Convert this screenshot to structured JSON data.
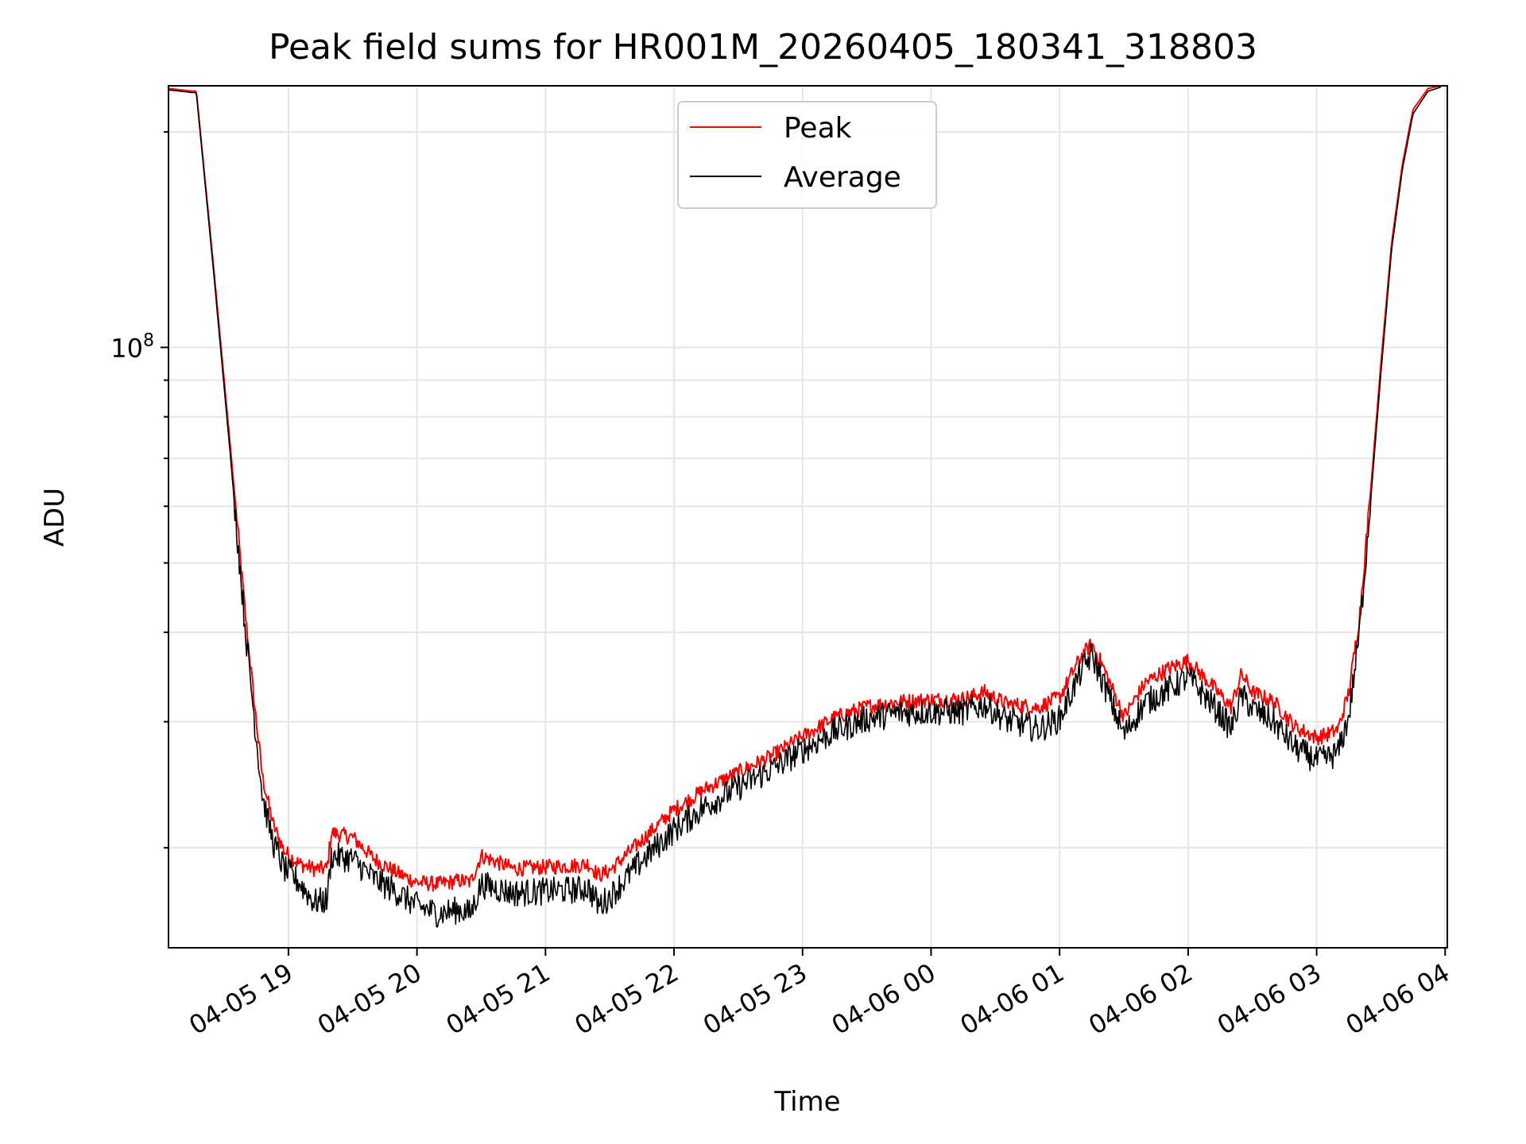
{
  "chart_data": {
    "type": "line",
    "title": "Peak field sums for HR001M_20260405_180341_318803",
    "xlabel": "Time",
    "ylabel": "ADU",
    "yscale": "log",
    "grid": true,
    "legend_position": "upper-center",
    "xlim": [
      "2026-04-05 18:04",
      "2026-04-06 04:01"
    ],
    "ylim": [
      14500000,
      232000000
    ],
    "x_ticks": [
      "04-05 19",
      "04-05 20",
      "04-05 21",
      "04-05 22",
      "04-05 23",
      "04-06 00",
      "04-06 01",
      "04-06 02",
      "04-06 03",
      "04-06 04"
    ],
    "y_tick_labels": [
      {
        "value": 100000000,
        "mantissa": "10",
        "exponent": "8"
      }
    ],
    "colors": {
      "Peak": "#ff0000",
      "Average": "#000000"
    },
    "series": [
      {
        "name": "Peak",
        "x": [
          "2026-04-05 18:04",
          "2026-04-05 18:15",
          "2026-04-05 18:17",
          "2026-04-05 18:25",
          "2026-04-05 18:33",
          "2026-04-05 18:40",
          "2026-04-05 18:45",
          "2026-04-05 18:48",
          "2026-04-05 18:53",
          "2026-04-05 18:58",
          "2026-04-05 19:05",
          "2026-04-05 19:12",
          "2026-04-05 19:18",
          "2026-04-05 19:20",
          "2026-04-05 19:30",
          "2026-04-05 19:40",
          "2026-04-05 19:50",
          "2026-04-05 20:00",
          "2026-04-05 20:10",
          "2026-04-05 20:20",
          "2026-04-05 20:25",
          "2026-04-05 20:30",
          "2026-04-05 20:45",
          "2026-04-05 21:00",
          "2026-04-05 21:15",
          "2026-04-05 21:20",
          "2026-04-05 21:25",
          "2026-04-05 21:30",
          "2026-04-05 21:45",
          "2026-04-05 22:00",
          "2026-04-05 22:15",
          "2026-04-05 22:30",
          "2026-04-05 22:45",
          "2026-04-05 23:00",
          "2026-04-05 23:15",
          "2026-04-05 23:30",
          "2026-04-05 23:45",
          "2026-04-06 00:00",
          "2026-04-06 00:15",
          "2026-04-06 00:25",
          "2026-04-06 00:35",
          "2026-04-06 00:50",
          "2026-04-06 01:00",
          "2026-04-06 01:10",
          "2026-04-06 01:15",
          "2026-04-06 01:20",
          "2026-04-06 01:30",
          "2026-04-06 01:40",
          "2026-04-06 01:50",
          "2026-04-06 02:00",
          "2026-04-06 02:10",
          "2026-04-06 02:20",
          "2026-04-06 02:25",
          "2026-04-06 02:30",
          "2026-04-06 02:40",
          "2026-04-06 02:50",
          "2026-04-06 03:00",
          "2026-04-06 03:05",
          "2026-04-06 03:10",
          "2026-04-06 03:15",
          "2026-04-06 03:20",
          "2026-04-06 03:25",
          "2026-04-06 03:30",
          "2026-04-06 03:35",
          "2026-04-06 03:40",
          "2026-04-06 03:45",
          "2026-04-06 03:52",
          "2026-04-06 03:58"
        ],
        "y": [
          230000000,
          228000000,
          228000000,
          130000000,
          72000000,
          42000000,
          30000000,
          25000000,
          21500000,
          19800000,
          19000000,
          18700000,
          18700000,
          21000000,
          20700000,
          19300000,
          18500000,
          17900000,
          17800000,
          18000000,
          17900000,
          19500000,
          18700000,
          18800000,
          18900000,
          19000000,
          18300000,
          18600000,
          20500000,
          22600000,
          24200000,
          25500000,
          26800000,
          28600000,
          30400000,
          31500000,
          32000000,
          32200000,
          32300000,
          33000000,
          31800000,
          31400000,
          32500000,
          37000000,
          38500000,
          36000000,
          30500000,
          34000000,
          35500000,
          36500000,
          34000000,
          31500000,
          35000000,
          33000000,
          32000000,
          29500000,
          28500000,
          28800000,
          29300000,
          33000000,
          42000000,
          62000000,
          95000000,
          140000000,
          180000000,
          215000000,
          230000000,
          232000000
        ]
      },
      {
        "name": "Average",
        "x": [
          "2026-04-05 18:04",
          "2026-04-05 18:15",
          "2026-04-05 18:17",
          "2026-04-05 18:25",
          "2026-04-05 18:33",
          "2026-04-05 18:40",
          "2026-04-05 18:45",
          "2026-04-05 18:48",
          "2026-04-05 18:53",
          "2026-04-05 18:58",
          "2026-04-05 19:05",
          "2026-04-05 19:12",
          "2026-04-05 19:18",
          "2026-04-05 19:20",
          "2026-04-05 19:30",
          "2026-04-05 19:40",
          "2026-04-05 19:50",
          "2026-04-05 20:00",
          "2026-04-05 20:10",
          "2026-04-05 20:20",
          "2026-04-05 20:25",
          "2026-04-05 20:30",
          "2026-04-05 20:45",
          "2026-04-05 21:00",
          "2026-04-05 21:15",
          "2026-04-05 21:20",
          "2026-04-05 21:25",
          "2026-04-05 21:30",
          "2026-04-05 21:45",
          "2026-04-05 22:00",
          "2026-04-05 22:15",
          "2026-04-05 22:30",
          "2026-04-05 22:45",
          "2026-04-05 23:00",
          "2026-04-05 23:15",
          "2026-04-05 23:30",
          "2026-04-05 23:45",
          "2026-04-06 00:00",
          "2026-04-06 00:15",
          "2026-04-06 00:25",
          "2026-04-06 00:35",
          "2026-04-06 00:50",
          "2026-04-06 01:00",
          "2026-04-06 01:10",
          "2026-04-06 01:15",
          "2026-04-06 01:20",
          "2026-04-06 01:30",
          "2026-04-06 01:40",
          "2026-04-06 01:50",
          "2026-04-06 02:00",
          "2026-04-06 02:10",
          "2026-04-06 02:20",
          "2026-04-06 02:25",
          "2026-04-06 02:30",
          "2026-04-06 02:40",
          "2026-04-06 02:50",
          "2026-04-06 03:00",
          "2026-04-06 03:05",
          "2026-04-06 03:10",
          "2026-04-06 03:15",
          "2026-04-06 03:20",
          "2026-04-06 03:25",
          "2026-04-06 03:30",
          "2026-04-06 03:35",
          "2026-04-06 03:40",
          "2026-04-06 03:45",
          "2026-04-06 03:52",
          "2026-04-06 03:58"
        ],
        "y": [
          229000000,
          227000000,
          227000000,
          128000000,
          70000000,
          40000000,
          28500000,
          23500000,
          20300000,
          18700000,
          17900000,
          16800000,
          16900000,
          19500000,
          19300000,
          18100000,
          17400000,
          16600000,
          16200000,
          16400000,
          16200000,
          17800000,
          17300000,
          17400000,
          17500000,
          17600000,
          16600000,
          17100000,
          19200000,
          21200000,
          22900000,
          24300000,
          25700000,
          27400000,
          29100000,
          30300000,
          30900000,
          31000000,
          31000000,
          31700000,
          30200000,
          29300000,
          30300000,
          35300000,
          37200000,
          34300000,
          28800000,
          31900000,
          33200000,
          34600000,
          32100000,
          29400000,
          32700000,
          31300000,
          30000000,
          27600000,
          26500000,
          26700000,
          27200000,
          30500000,
          40000000,
          60000000,
          92000000,
          137000000,
          177000000,
          212000000,
          228000000,
          231000000
        ]
      }
    ]
  }
}
